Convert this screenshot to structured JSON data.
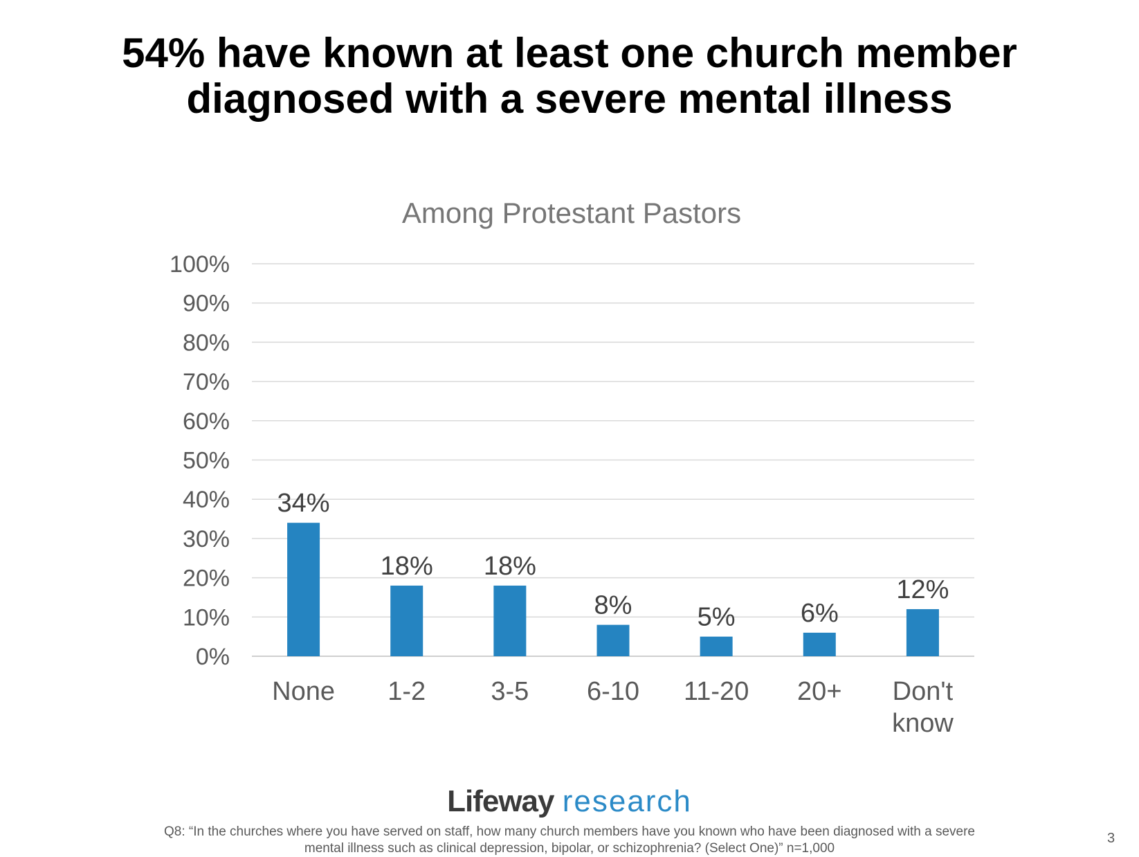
{
  "slide": {
    "title_line1": "54% have known at least one church member",
    "title_line2": "diagnosed with a severe mental illness",
    "logo_bold": "Lifeway",
    "logo_light": "research",
    "footnote_line1": "Q8: “In the churches where you have served on staff, how many church members have you known who have been diagnosed with a severe",
    "footnote_line2": "mental illness such as clinical depression, bipolar, or schizophrenia? (Select One)” n=1,000",
    "page_number": "3"
  },
  "chart_data": {
    "type": "bar",
    "title": "Among Protestant Pastors",
    "categories": [
      "None",
      "1-2",
      "3-5",
      "6-10",
      "11-20",
      "20+",
      "Don't know"
    ],
    "values": [
      34,
      18,
      18,
      8,
      5,
      6,
      12
    ],
    "data_labels": [
      "34%",
      "18%",
      "18%",
      "8%",
      "5%",
      "6%",
      "12%"
    ],
    "xlabel": "",
    "ylabel": "",
    "ylim": [
      0,
      100
    ],
    "yticks": [
      0,
      10,
      20,
      30,
      40,
      50,
      60,
      70,
      80,
      90,
      100
    ],
    "ytick_labels": [
      "0%",
      "10%",
      "20%",
      "30%",
      "40%",
      "50%",
      "60%",
      "70%",
      "80%",
      "90%",
      "100%"
    ],
    "grid": true,
    "legend": "none",
    "bar_color": "#2584c1"
  }
}
